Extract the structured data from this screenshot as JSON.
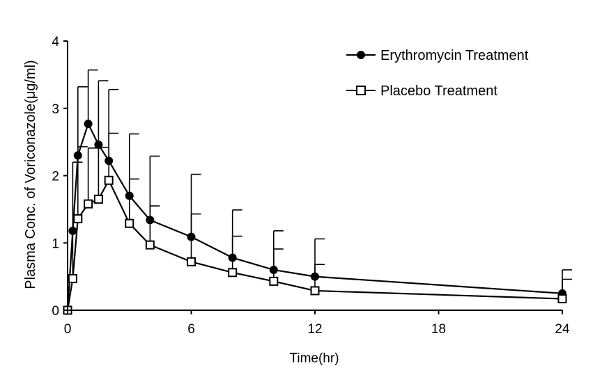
{
  "chart_data": {
    "type": "line",
    "title": "",
    "xlabel": "Time(hr)",
    "ylabel": "Plasma Conc. of Voriconazole(μg/ml)",
    "xlim": [
      0,
      24
    ],
    "ylim": [
      0,
      4
    ],
    "xticks": [
      0,
      6,
      12,
      18,
      24
    ],
    "yticks": [
      0,
      1,
      2,
      3,
      4
    ],
    "grid": false,
    "legend_position": "top-right",
    "series": [
      {
        "name": "Erythromycin Treatment",
        "marker": "filled-circle",
        "x": [
          0,
          0.25,
          0.5,
          1,
          1.5,
          2,
          3,
          4,
          6,
          8,
          10,
          12,
          24
        ],
        "y": [
          0,
          1.18,
          2.3,
          2.77,
          2.46,
          2.22,
          1.7,
          1.34,
          1.09,
          0.78,
          0.6,
          0.5,
          0.25
        ],
        "err_upper": [
          0,
          0,
          3.32,
          3.57,
          3.41,
          3.28,
          2.62,
          2.29,
          2.02,
          1.49,
          1.18,
          1.06,
          0.6
        ]
      },
      {
        "name": "Placebo Treatment",
        "marker": "open-square",
        "x": [
          0,
          0.25,
          0.5,
          1,
          1.5,
          2,
          3,
          4,
          6,
          8,
          10,
          12,
          24
        ],
        "y": [
          0,
          0.47,
          1.36,
          1.58,
          1.65,
          1.93,
          1.29,
          0.97,
          0.72,
          0.56,
          0.43,
          0.29,
          0.17
        ],
        "err_upper": [
          0,
          2.2,
          2.43,
          2.41,
          2.42,
          2.63,
          1.95,
          1.55,
          1.43,
          1.1,
          0.91,
          0.68,
          0.46
        ]
      }
    ]
  }
}
